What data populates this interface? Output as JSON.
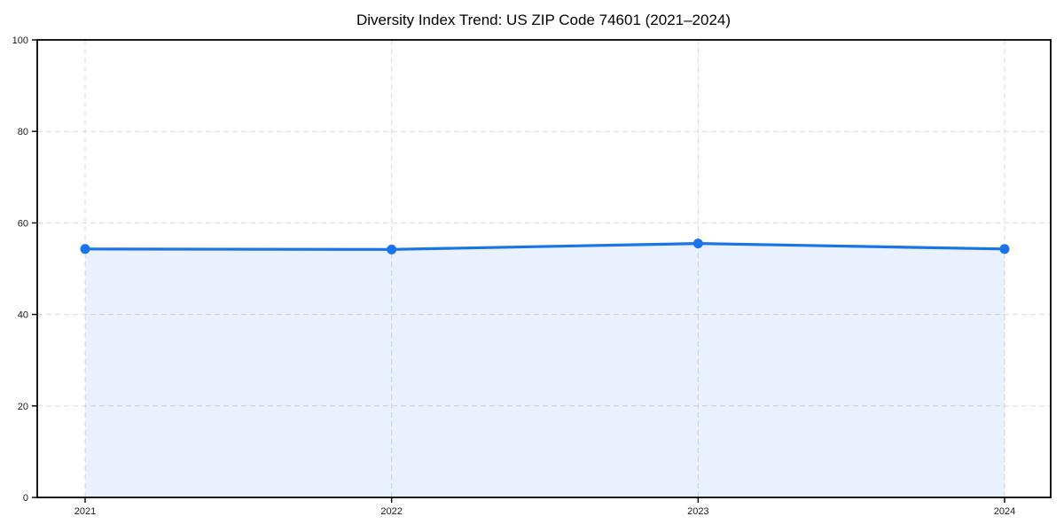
{
  "chart_data": {
    "type": "line",
    "title": "Diversity Index Trend: US ZIP Code 74601 (2021–2024)",
    "x": [
      "2021",
      "2022",
      "2023",
      "2024"
    ],
    "series": [
      {
        "name": "Diversity Index",
        "values": [
          54.3,
          54.2,
          55.5,
          54.3
        ]
      }
    ],
    "xlabel": "",
    "ylabel": "",
    "ylim": [
      0,
      100
    ],
    "yticks": [
      0,
      20,
      40,
      60,
      80,
      100
    ],
    "grid": true,
    "grid_style": "dashed",
    "legend": "none",
    "marker": "circle",
    "area_fill": true,
    "colors": {
      "line": "#1a73e8",
      "marker": "#1a73e8",
      "area_fill": "#1a73e8",
      "area_fill_opacity": 0.1,
      "grid": "#cfcfcf",
      "grid_opacity": 0.75,
      "axis": "#000000",
      "tick_label": "#1a1a1a",
      "title": "#000000",
      "background": "#ffffff"
    }
  }
}
